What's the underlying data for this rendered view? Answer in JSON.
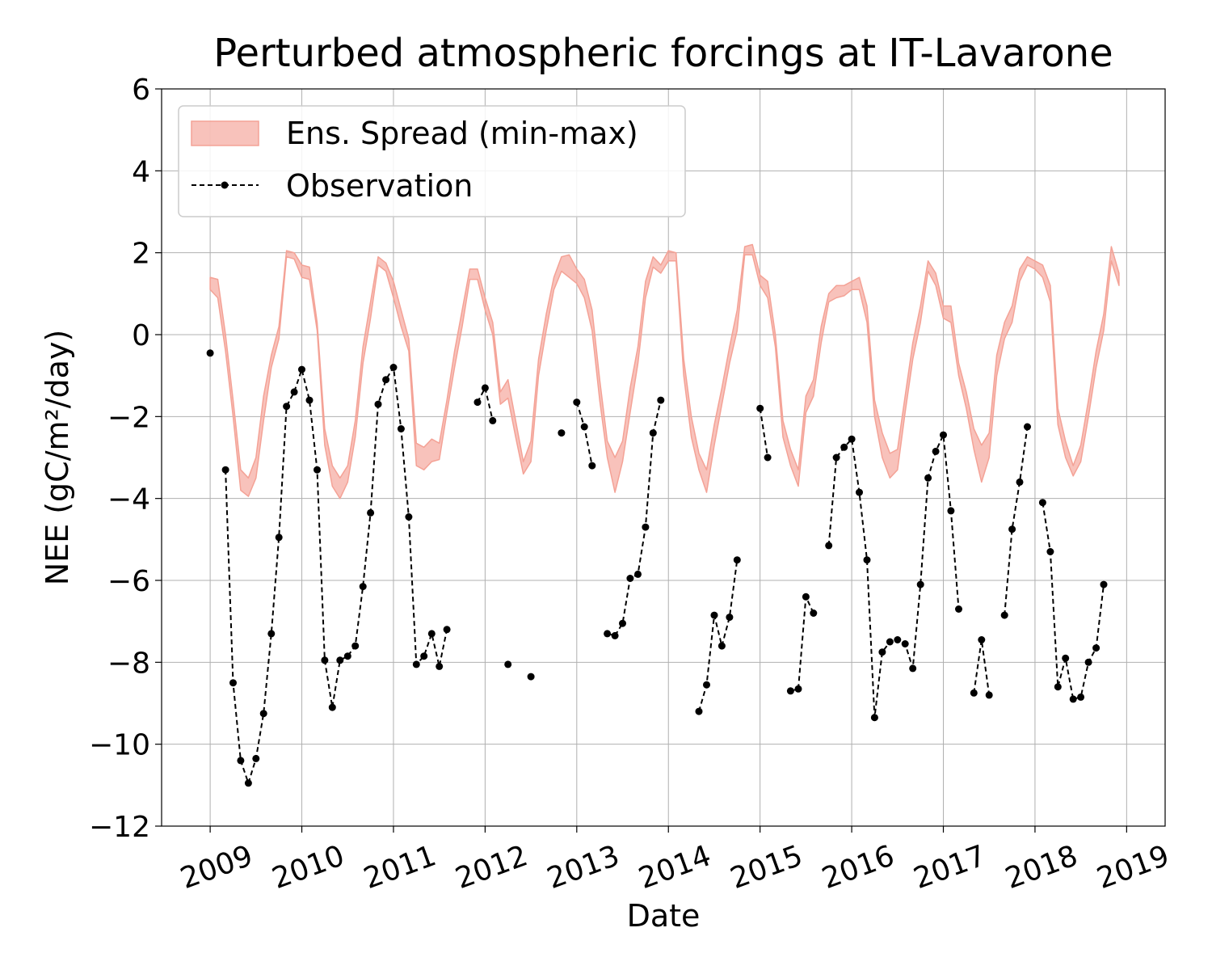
{
  "chart_data": {
    "type": "line",
    "title": "Perturbed atmospheric forcings at IT-Lavarone",
    "xlabel": "Date",
    "ylabel": "NEE  (gC/m²/day)",
    "ylim": [
      -12,
      6
    ],
    "xlim": [
      2008.47,
      2019.42
    ],
    "x_ticks": [
      2009,
      2010,
      2011,
      2012,
      2013,
      2014,
      2015,
      2016,
      2017,
      2018,
      2019
    ],
    "y_ticks": [
      -12,
      -10,
      -8,
      -6,
      -4,
      -2,
      0,
      2,
      4,
      6
    ],
    "y_tick_labels": [
      "−12",
      "−10",
      "−8",
      "−6",
      "−4",
      "−2",
      "0",
      "2",
      "4",
      "6"
    ],
    "grid": true,
    "legend_position": "upper-left",
    "band": {
      "name": "Ens. Spread (min-max)",
      "color": "#f4a296",
      "x": [
        2009.0,
        2009.083,
        2009.167,
        2009.25,
        2009.333,
        2009.417,
        2009.5,
        2009.583,
        2009.667,
        2009.75,
        2009.833,
        2009.917,
        2010.0,
        2010.083,
        2010.167,
        2010.25,
        2010.333,
        2010.417,
        2010.5,
        2010.583,
        2010.667,
        2010.75,
        2010.833,
        2010.917,
        2011.0,
        2011.083,
        2011.167,
        2011.25,
        2011.333,
        2011.417,
        2011.5,
        2011.583,
        2011.667,
        2011.75,
        2011.833,
        2011.917,
        2012.0,
        2012.083,
        2012.167,
        2012.25,
        2012.333,
        2012.417,
        2012.5,
        2012.583,
        2012.667,
        2012.75,
        2012.833,
        2012.917,
        2013.0,
        2013.083,
        2013.167,
        2013.25,
        2013.333,
        2013.417,
        2013.5,
        2013.583,
        2013.667,
        2013.75,
        2013.833,
        2013.917,
        2014.0,
        2014.083,
        2014.167,
        2014.25,
        2014.333,
        2014.417,
        2014.5,
        2014.583,
        2014.667,
        2014.75,
        2014.833,
        2014.917,
        2015.0,
        2015.083,
        2015.167,
        2015.25,
        2015.333,
        2015.417,
        2015.5,
        2015.583,
        2015.667,
        2015.75,
        2015.833,
        2015.917,
        2016.0,
        2016.083,
        2016.167,
        2016.25,
        2016.333,
        2016.417,
        2016.5,
        2016.583,
        2016.667,
        2016.75,
        2016.833,
        2016.917,
        2017.0,
        2017.083,
        2017.167,
        2017.25,
        2017.333,
        2017.417,
        2017.5,
        2017.583,
        2017.667,
        2017.75,
        2017.833,
        2017.917,
        2018.0,
        2018.083,
        2018.167,
        2018.25,
        2018.333,
        2018.417,
        2018.5,
        2018.583,
        2018.667,
        2018.75,
        2018.833,
        2018.917
      ],
      "upper": [
        1.4,
        1.35,
        0.0,
        -1.6,
        -3.3,
        -3.5,
        -3.0,
        -1.5,
        -0.5,
        0.2,
        2.05,
        2.0,
        1.7,
        1.65,
        0.3,
        -2.3,
        -3.2,
        -3.5,
        -3.2,
        -2.1,
        -0.3,
        0.8,
        1.9,
        1.75,
        1.3,
        0.6,
        -0.1,
        -2.65,
        -2.75,
        -2.55,
        -2.65,
        -1.6,
        -0.4,
        0.6,
        1.6,
        1.6,
        0.9,
        0.3,
        -1.4,
        -1.1,
        -2.1,
        -3.1,
        -2.6,
        -0.6,
        0.5,
        1.4,
        1.9,
        1.95,
        1.6,
        1.35,
        0.6,
        -1.1,
        -2.6,
        -3.0,
        -2.6,
        -1.3,
        -0.3,
        1.3,
        1.9,
        1.7,
        2.05,
        2.0,
        -0.6,
        -2.0,
        -2.9,
        -3.3,
        -2.2,
        -1.3,
        -0.3,
        0.6,
        2.15,
        2.2,
        1.45,
        1.3,
        0.0,
        -2.1,
        -2.8,
        -3.3,
        -1.5,
        -1.1,
        0.2,
        1.0,
        1.2,
        1.2,
        1.3,
        1.4,
        0.7,
        -1.6,
        -2.4,
        -2.9,
        -2.8,
        -1.5,
        -0.2,
        0.7,
        1.8,
        1.5,
        0.7,
        0.7,
        -0.7,
        -1.4,
        -2.3,
        -2.7,
        -2.4,
        -0.5,
        0.3,
        0.7,
        1.6,
        1.9,
        1.8,
        1.7,
        1.2,
        -1.8,
        -2.6,
        -3.2,
        -2.7,
        -1.6,
        -0.4,
        0.5,
        2.15,
        1.5
      ],
      "lower": [
        1.1,
        0.9,
        -0.4,
        -2.0,
        -3.8,
        -3.95,
        -3.5,
        -2.1,
        -0.8,
        -0.1,
        1.9,
        1.85,
        1.4,
        1.35,
        0.1,
        -2.7,
        -3.7,
        -4.0,
        -3.6,
        -2.5,
        -0.7,
        0.4,
        1.7,
        1.55,
        0.9,
        0.2,
        -0.4,
        -3.2,
        -3.3,
        -3.1,
        -3.05,
        -1.9,
        -0.8,
        0.2,
        1.35,
        1.35,
        0.6,
        0.0,
        -1.7,
        -1.55,
        -2.5,
        -3.4,
        -3.1,
        -1.0,
        0.1,
        1.1,
        1.55,
        1.4,
        1.25,
        0.9,
        0.1,
        -1.6,
        -3.0,
        -3.85,
        -3.1,
        -1.9,
        -0.7,
        0.9,
        1.65,
        1.5,
        1.8,
        1.8,
        -1.0,
        -2.5,
        -3.3,
        -3.85,
        -2.7,
        -1.7,
        -0.7,
        0.1,
        1.95,
        1.95,
        1.2,
        0.9,
        -0.3,
        -2.5,
        -3.2,
        -3.7,
        -1.9,
        -1.5,
        -0.2,
        0.8,
        0.9,
        0.95,
        1.1,
        1.1,
        0.3,
        -2.0,
        -3.0,
        -3.5,
        -3.3,
        -1.9,
        -0.6,
        0.3,
        1.55,
        1.2,
        0.4,
        0.3,
        -1.0,
        -1.8,
        -2.8,
        -3.6,
        -3.0,
        -1.0,
        -0.1,
        0.3,
        1.3,
        1.7,
        1.6,
        1.4,
        0.8,
        -2.2,
        -3.0,
        -3.45,
        -3.1,
        -2.0,
        -0.8,
        0.1,
        1.8,
        1.2
      ]
    },
    "observation": {
      "name": "Observation",
      "color": "#000000",
      "segments": [
        {
          "x": [
            2009.0
          ],
          "y": [
            -0.45
          ]
        },
        {
          "x": [
            2009.167,
            2009.25,
            2009.333,
            2009.417,
            2009.5,
            2009.583,
            2009.667,
            2009.75,
            2009.833,
            2009.917,
            2010.0,
            2010.083,
            2010.167,
            2010.25,
            2010.333,
            2010.417,
            2010.5,
            2010.583,
            2010.667,
            2010.75,
            2010.833,
            2010.917,
            2011.0,
            2011.083,
            2011.167,
            2011.25,
            2011.333,
            2011.417,
            2011.5,
            2011.583
          ],
          "y": [
            -3.3,
            -8.5,
            -10.4,
            -10.95,
            -10.35,
            -9.25,
            -7.3,
            -4.95,
            -1.75,
            -1.4,
            -0.85,
            -1.6,
            -3.3,
            -7.95,
            -9.1,
            -7.95,
            -7.85,
            -7.6,
            -6.15,
            -4.35,
            -1.7,
            -1.1,
            -0.8,
            -2.3,
            -4.45,
            -8.05,
            -7.85,
            -7.3,
            -8.1,
            -7.2
          ]
        },
        {
          "x": [
            2011.917,
            2012.0,
            2012.083
          ],
          "y": [
            -1.65,
            -1.3,
            -2.1
          ]
        },
        {
          "x": [
            2012.25
          ],
          "y": [
            -8.05
          ]
        },
        {
          "x": [
            2012.5
          ],
          "y": [
            -8.35
          ]
        },
        {
          "x": [
            2012.833
          ],
          "y": [
            -2.4
          ]
        },
        {
          "x": [
            2013.0,
            2013.083,
            2013.167
          ],
          "y": [
            -1.65,
            -2.25,
            -3.2
          ]
        },
        {
          "x": [
            2013.333,
            2013.417,
            2013.5,
            2013.583,
            2013.667,
            2013.75,
            2013.833,
            2013.917
          ],
          "y": [
            -7.3,
            -7.35,
            -7.05,
            -5.95,
            -5.85,
            -4.7,
            -2.4,
            -1.6
          ]
        },
        {
          "x": [
            2014.333,
            2014.417,
            2014.5,
            2014.583,
            2014.667,
            2014.75
          ],
          "y": [
            -9.2,
            -8.55,
            -6.85,
            -7.6,
            -6.9,
            -5.5
          ]
        },
        {
          "x": [
            2015.0,
            2015.083
          ],
          "y": [
            -1.8,
            -3.0
          ]
        },
        {
          "x": [
            2015.333,
            2015.417,
            2015.5,
            2015.583
          ],
          "y": [
            -8.7,
            -8.65,
            -6.4,
            -6.8
          ]
        },
        {
          "x": [
            2015.75,
            2015.833,
            2015.917,
            2016.0,
            2016.083,
            2016.167,
            2016.25,
            2016.333,
            2016.417,
            2016.5,
            2016.583,
            2016.667,
            2016.75,
            2016.833,
            2016.917,
            2017.0,
            2017.083,
            2017.167
          ],
          "y": [
            -5.15,
            -3.0,
            -2.75,
            -2.55,
            -3.85,
            -5.5,
            -9.35,
            -7.75,
            -7.5,
            -7.45,
            -7.55,
            -8.15,
            -6.1,
            -3.5,
            -2.85,
            -2.45,
            -4.3,
            -6.7
          ]
        },
        {
          "x": [
            2017.333,
            2017.417,
            2017.5
          ],
          "y": [
            -8.75,
            -7.45,
            -8.8
          ]
        },
        {
          "x": [
            2017.667,
            2017.75,
            2017.833,
            2017.917
          ],
          "y": [
            -6.85,
            -4.75,
            -3.6,
            -2.25
          ]
        },
        {
          "x": [
            2018.083,
            2018.167,
            2018.25,
            2018.333,
            2018.417,
            2018.5,
            2018.583,
            2018.667,
            2018.75
          ],
          "y": [
            -4.1,
            -5.3,
            -8.6,
            -7.9,
            -8.9,
            -8.85,
            -8.0,
            -7.65,
            -6.1
          ]
        }
      ]
    }
  }
}
